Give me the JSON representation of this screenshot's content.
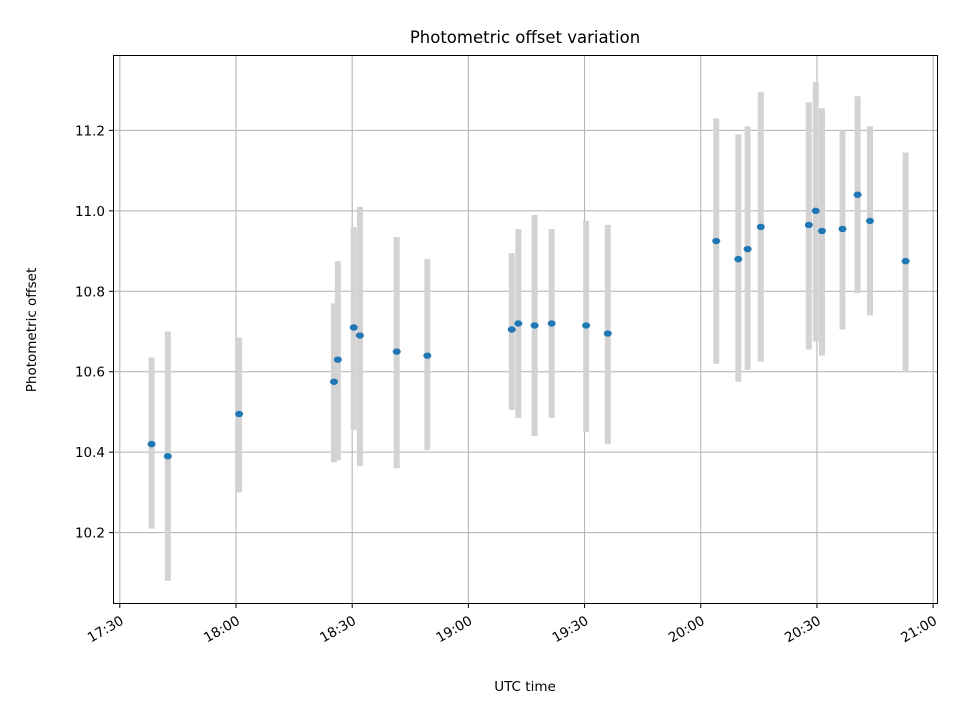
{
  "chart_data": {
    "type": "scatter",
    "title": "Photometric offset variation",
    "xlabel": "UTC time",
    "ylabel": "Photometric offset",
    "x_unit": "minutes after 17:00",
    "xlim": [
      28.5,
      241
    ],
    "ylim": [
      10.025,
      11.385
    ],
    "grid": true,
    "x_ticks": [
      {
        "value": 30,
        "label": "17:30"
      },
      {
        "value": 60,
        "label": "18:00"
      },
      {
        "value": 90,
        "label": "18:30"
      },
      {
        "value": 120,
        "label": "19:00"
      },
      {
        "value": 150,
        "label": "19:30"
      },
      {
        "value": 180,
        "label": "20:00"
      },
      {
        "value": 210,
        "label": "20:30"
      },
      {
        "value": 240,
        "label": "21:00"
      }
    ],
    "y_ticks": [
      {
        "value": 10.2,
        "label": "10.2"
      },
      {
        "value": 10.4,
        "label": "10.4"
      },
      {
        "value": 10.6,
        "label": "10.6"
      },
      {
        "value": 10.8,
        "label": "10.8"
      },
      {
        "value": 11.0,
        "label": "11.0"
      },
      {
        "value": 11.2,
        "label": "11.2"
      }
    ],
    "point_color": "#1f77b4",
    "error_color": "#d3d3d3",
    "series": [
      {
        "name": "Photometric offset",
        "points": [
          {
            "x": 38.2,
            "y": 10.42,
            "ylow": 10.21,
            "yhigh": 10.635
          },
          {
            "x": 42.4,
            "y": 10.39,
            "ylow": 10.08,
            "yhigh": 10.7
          },
          {
            "x": 60.8,
            "y": 10.495,
            "ylow": 10.3,
            "yhigh": 10.685
          },
          {
            "x": 85.3,
            "y": 10.575,
            "ylow": 10.375,
            "yhigh": 10.77
          },
          {
            "x": 86.3,
            "y": 10.63,
            "ylow": 10.38,
            "yhigh": 10.875
          },
          {
            "x": 90.4,
            "y": 10.71,
            "ylow": 10.455,
            "yhigh": 10.96
          },
          {
            "x": 92.0,
            "y": 10.69,
            "ylow": 10.365,
            "yhigh": 11.01
          },
          {
            "x": 101.5,
            "y": 10.65,
            "ylow": 10.36,
            "yhigh": 10.935
          },
          {
            "x": 109.4,
            "y": 10.64,
            "ylow": 10.405,
            "yhigh": 10.88
          },
          {
            "x": 131.2,
            "y": 10.705,
            "ylow": 10.505,
            "yhigh": 10.895
          },
          {
            "x": 132.9,
            "y": 10.72,
            "ylow": 10.485,
            "yhigh": 10.955
          },
          {
            "x": 137.1,
            "y": 10.715,
            "ylow": 10.44,
            "yhigh": 10.99
          },
          {
            "x": 141.5,
            "y": 10.72,
            "ylow": 10.485,
            "yhigh": 10.955
          },
          {
            "x": 150.4,
            "y": 10.715,
            "ylow": 10.45,
            "yhigh": 10.975
          },
          {
            "x": 156.0,
            "y": 10.695,
            "ylow": 10.42,
            "yhigh": 10.965
          },
          {
            "x": 184.0,
            "y": 10.925,
            "ylow": 10.62,
            "yhigh": 11.23
          },
          {
            "x": 189.7,
            "y": 10.88,
            "ylow": 10.575,
            "yhigh": 11.19
          },
          {
            "x": 192.1,
            "y": 10.905,
            "ylow": 10.605,
            "yhigh": 11.21
          },
          {
            "x": 195.5,
            "y": 10.96,
            "ylow": 10.625,
            "yhigh": 11.295
          },
          {
            "x": 207.9,
            "y": 10.965,
            "ylow": 10.655,
            "yhigh": 11.27
          },
          {
            "x": 209.7,
            "y": 11.0,
            "ylow": 10.675,
            "yhigh": 11.32
          },
          {
            "x": 211.3,
            "y": 10.95,
            "ylow": 10.64,
            "yhigh": 11.255
          },
          {
            "x": 216.6,
            "y": 10.955,
            "ylow": 10.705,
            "yhigh": 11.2
          },
          {
            "x": 220.5,
            "y": 11.04,
            "ylow": 10.795,
            "yhigh": 11.285
          },
          {
            "x": 223.7,
            "y": 10.975,
            "ylow": 10.74,
            "yhigh": 11.21
          },
          {
            "x": 232.9,
            "y": 10.875,
            "ylow": 10.6,
            "yhigh": 11.145
          }
        ]
      }
    ]
  }
}
